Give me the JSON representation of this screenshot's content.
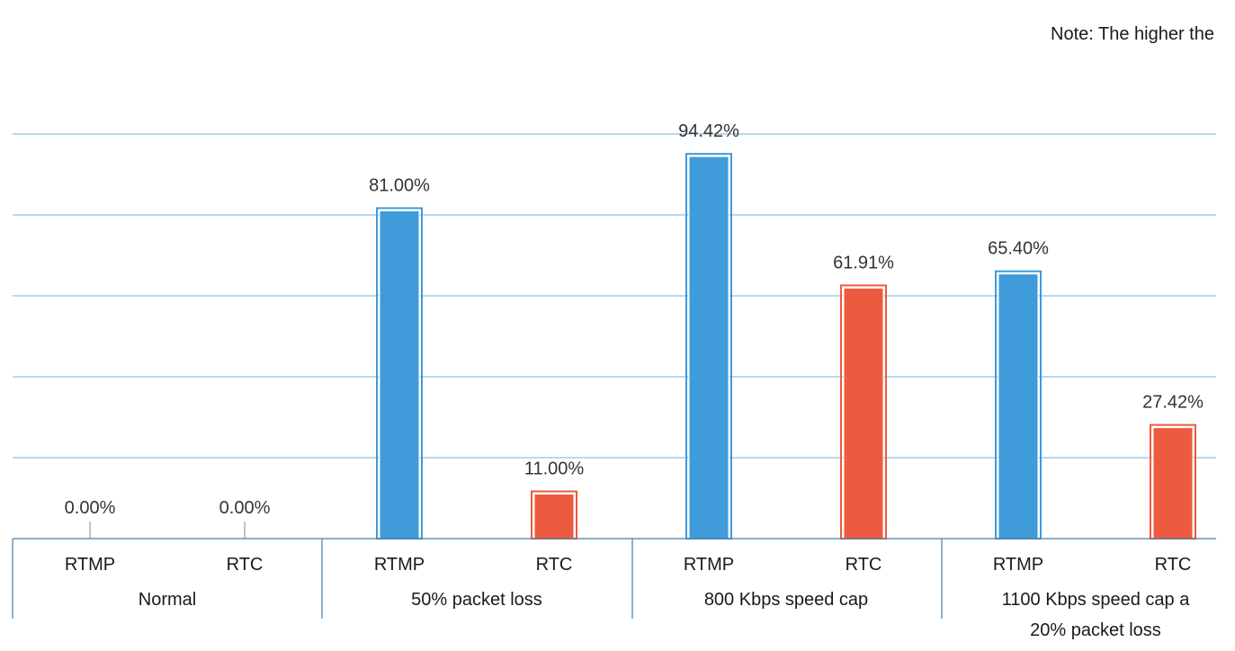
{
  "note": "Note: The higher the",
  "chart_data": {
    "type": "bar",
    "title": "",
    "xlabel": "",
    "ylabel": "",
    "ylim": [
      0,
      100
    ],
    "grid": true,
    "legend": "none",
    "groups": [
      {
        "label": "Normal",
        "label_lines": [
          "Normal"
        ]
      },
      {
        "label": "50% packet loss",
        "label_lines": [
          "50% packet loss"
        ]
      },
      {
        "label": "800 Kbps speed cap",
        "label_lines": [
          "800 Kbps speed cap"
        ]
      },
      {
        "label": "1100 Kbps speed cap a 20% packet loss",
        "label_lines": [
          "1100 Kbps speed cap a",
          "20% packet loss"
        ]
      }
    ],
    "categories": [
      "RTMP",
      "RTC",
      "RTMP",
      "RTC",
      "RTMP",
      "RTC",
      "RTMP",
      "RTC"
    ],
    "values": [
      0.0,
      0.0,
      81.0,
      11.0,
      94.42,
      61.91,
      65.4,
      27.42
    ],
    "value_labels": [
      "0.00%",
      "0.00%",
      "81.00%",
      "11.00%",
      "94.42%",
      "61.91%",
      "65.40%",
      "27.42%"
    ],
    "colors": {
      "RTMP": "#3f9bd9",
      "RTC": "#ee5a3f",
      "grid": "#8cc3e3",
      "axis": "#4a7fa8",
      "text": "#1a1a1a",
      "data_label": "#333333"
    }
  }
}
